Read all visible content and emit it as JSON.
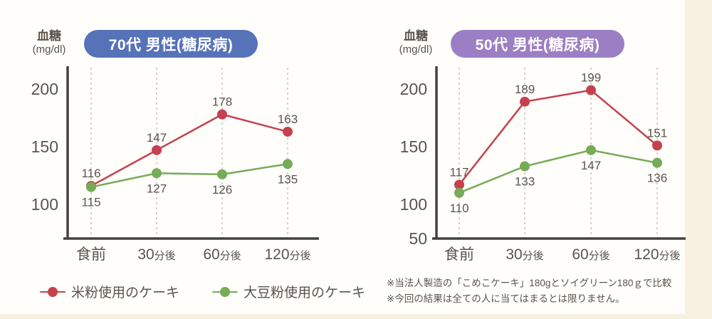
{
  "colors": {
    "background": "#fffefb",
    "page_edge": "#f8f0e1",
    "text": "#5b534a",
    "axis": "#45403a",
    "gridline": "#c8c3ba",
    "rice_flour_red": "#c5414e",
    "soy_flour_green": "#76ab57",
    "badge_blue": "#5672b8",
    "badge_purple": "#9c7ec4"
  },
  "charts": [
    {
      "badge_label": "70代 男性(糖尿病)",
      "badge_color": "#5672b8",
      "y_axis_title": "血糖",
      "y_axis_unit": "(mg/dl)"
    },
    {
      "badge_label": "50代 男性(糖尿病)",
      "badge_color": "#9c7ec4",
      "y_axis_title": "血糖",
      "y_axis_unit": "(mg/dl)"
    }
  ],
  "legend": {
    "items": [
      {
        "label": "米粉使用のケーキ",
        "color": "#c5414e"
      },
      {
        "label": "大豆粉使用のケーキ",
        "color": "#76ab57"
      }
    ]
  },
  "footnotes": {
    "line1": "※当法人製造の「こめこケーキ」180gとソイグリーン180ｇで比較",
    "line2": "※今回の結果は全ての人に当てはまるとは限りません。"
  },
  "chart_data": [
    {
      "type": "line",
      "title": "70代 男性(糖尿病)",
      "ylabel": "血糖 (mg/dl)",
      "categories": [
        "食前",
        "30分後",
        "60分後",
        "120分後"
      ],
      "series": [
        {
          "name": "米粉使用のケーキ",
          "color": "#c5414e",
          "values": [
            116,
            147,
            178,
            163
          ],
          "value_labels": "above"
        },
        {
          "name": "大豆粉使用のケーキ",
          "color": "#76ab57",
          "values": [
            115,
            127,
            126,
            135
          ],
          "value_labels": "below"
        }
      ],
      "y_ticks": [
        200,
        150,
        100
      ],
      "ylim": [
        70,
        215
      ],
      "grid": "dashed-vertical-per-category",
      "legend_position": "bottom-left"
    },
    {
      "type": "line",
      "title": "50代 男性(糖尿病)",
      "ylabel": "血糖 (mg/dl)",
      "categories": [
        "食前",
        "30分後",
        "60分後",
        "120分後"
      ],
      "series": [
        {
          "name": "米粉使用のケーキ",
          "color": "#c5414e",
          "values": [
            117,
            189,
            199,
            151
          ],
          "value_labels": "above"
        },
        {
          "name": "大豆粉使用のケーキ",
          "color": "#76ab57",
          "values": [
            110,
            133,
            147,
            136
          ],
          "value_labels": "below"
        }
      ],
      "y_ticks": [
        200,
        150,
        100,
        50
      ],
      "ylim": [
        70,
        215
      ],
      "grid": "dashed-vertical-per-category",
      "legend_position": "bottom-left"
    }
  ]
}
